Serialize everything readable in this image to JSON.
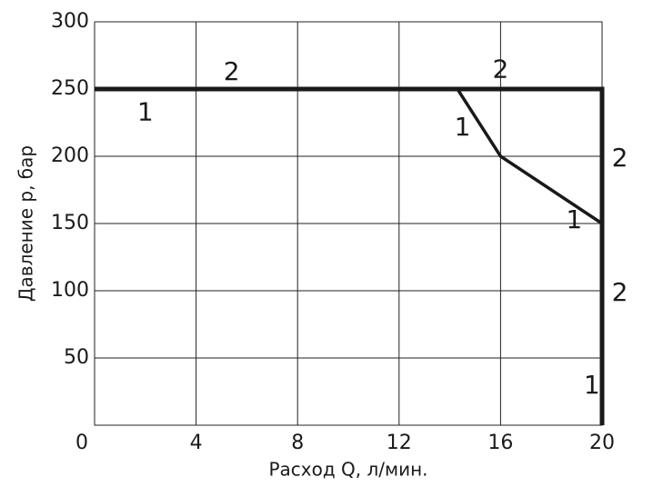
{
  "chart_data": {
    "type": "line",
    "x_label": "Расход Q, л/мин.",
    "y_label": "Давление p, бар",
    "xlim": [
      0,
      20
    ],
    "xticks": [
      0,
      4,
      8,
      12,
      16,
      20
    ],
    "ylim": [
      0,
      300
    ],
    "yticks": [
      50,
      100,
      150,
      200,
      250,
      300
    ],
    "grid": true,
    "series": [
      {
        "color": "#1a1a1a",
        "x": [
          0,
          14.3,
          16,
          20,
          20
        ],
        "values": [
          250,
          250,
          200,
          150,
          0
        ]
      },
      {
        "color": "#1a1a1a",
        "x": [
          0,
          20,
          20
        ],
        "values": [
          250,
          250,
          0
        ]
      }
    ],
    "annotations": [
      {
        "text": "2",
        "x": 5.4,
        "y": 262
      },
      {
        "text": "1",
        "x": 2,
        "y": 232
      },
      {
        "text": "2",
        "x": 16,
        "y": 264
      },
      {
        "text": "1",
        "x": 14.5,
        "y": 221
      },
      {
        "text": "2",
        "x": 20.7,
        "y": 198
      },
      {
        "text": "1",
        "x": 18.9,
        "y": 152
      },
      {
        "text": "2",
        "x": 20.7,
        "y": 98
      },
      {
        "text": "1",
        "x": 19.6,
        "y": 29
      }
    ]
  }
}
